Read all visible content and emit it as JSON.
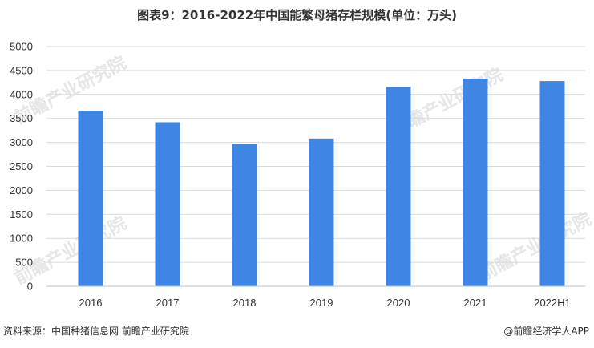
{
  "title": "图表9：2016-2022年中国能繁母猪存栏规模(单位：万头)",
  "footer": {
    "source": "资料来源：中国种猪信息网 前瞻产业研究院",
    "brand": "@前瞻经济学人APP"
  },
  "watermark": "前瞻产业研究院",
  "colors": {
    "bar": "#3F86E4",
    "grid": "#D9D9D9",
    "axis": "#BFBFBF"
  },
  "chart_data": {
    "type": "bar",
    "title": "图表9：2016-2022年中国能繁母猪存栏规模(单位：万头)",
    "categories": [
      "2016",
      "2017",
      "2018",
      "2019",
      "2020",
      "2021",
      "2022H1"
    ],
    "values": [
      3660,
      3420,
      2970,
      3080,
      4160,
      4330,
      4280
    ],
    "ylim": [
      0,
      5000
    ],
    "yticks": [
      0,
      500,
      1000,
      1500,
      2000,
      2500,
      3000,
      3500,
      4000,
      4500,
      5000
    ],
    "grid": true,
    "legend": "none"
  }
}
